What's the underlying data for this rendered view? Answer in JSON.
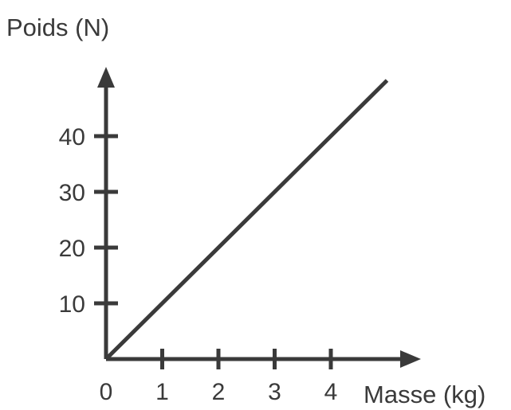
{
  "chart_data": {
    "type": "line",
    "xlabel": "Masse (kg)",
    "ylabel": "Poids (N)",
    "x_ticks": [
      "0",
      "1",
      "2",
      "3",
      "4"
    ],
    "y_ticks": [
      "10",
      "20",
      "30",
      "40"
    ],
    "xlim": [
      0,
      5.5
    ],
    "ylim": [
      0,
      52
    ],
    "grid": false,
    "series": [
      {
        "x": [
          0,
          5
        ],
        "y": [
          0,
          50
        ]
      }
    ],
    "colors": {
      "ink": "#3a3a3a"
    }
  }
}
